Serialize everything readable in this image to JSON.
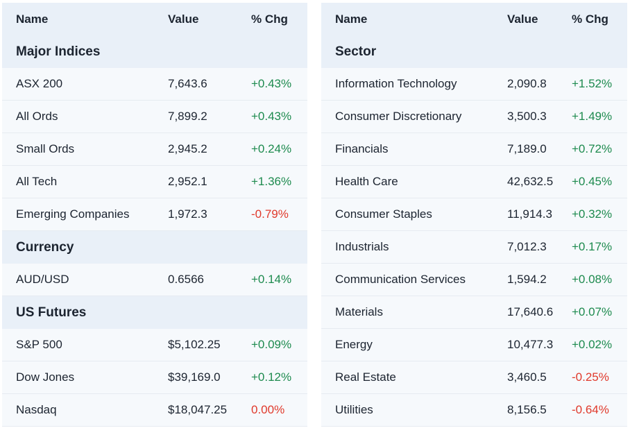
{
  "colors": {
    "positive": "#1d8a4e",
    "negative": "#e0392b",
    "header_bg": "#e9f0f8",
    "row_bg": "#f6f9fc"
  },
  "left": {
    "headers": {
      "name": "Name",
      "value": "Value",
      "chg": "% Chg"
    },
    "sections": [
      {
        "title": "Major Indices",
        "rows": [
          {
            "name": "ASX 200",
            "value": "7,643.6",
            "chg": "+0.43%",
            "dir": "pos"
          },
          {
            "name": "All Ords",
            "value": "7,899.2",
            "chg": "+0.43%",
            "dir": "pos"
          },
          {
            "name": "Small Ords",
            "value": "2,945.2",
            "chg": "+0.24%",
            "dir": "pos"
          },
          {
            "name": "All Tech",
            "value": "2,952.1",
            "chg": "+1.36%",
            "dir": "pos"
          },
          {
            "name": "Emerging Companies",
            "value": "1,972.3",
            "chg": "-0.79%",
            "dir": "neg"
          }
        ]
      },
      {
        "title": "Currency",
        "rows": [
          {
            "name": "AUD/USD",
            "value": "0.6566",
            "chg": "+0.14%",
            "dir": "pos"
          }
        ]
      },
      {
        "title": "US Futures",
        "rows": [
          {
            "name": "S&P 500",
            "value": "$5,102.25",
            "chg": "+0.09%",
            "dir": "pos"
          },
          {
            "name": "Dow Jones",
            "value": "$39,169.0",
            "chg": "+0.12%",
            "dir": "pos"
          },
          {
            "name": "Nasdaq",
            "value": "$18,047.25",
            "chg": "0.00%",
            "dir": "neu"
          }
        ]
      }
    ]
  },
  "right": {
    "headers": {
      "name": "Name",
      "value": "Value",
      "chg": "% Chg"
    },
    "sections": [
      {
        "title": "Sector",
        "rows": [
          {
            "name": "Information Technology",
            "value": "2,090.8",
            "chg": "+1.52%",
            "dir": "pos"
          },
          {
            "name": "Consumer Discretionary",
            "value": "3,500.3",
            "chg": "+1.49%",
            "dir": "pos"
          },
          {
            "name": "Financials",
            "value": "7,189.0",
            "chg": "+0.72%",
            "dir": "pos"
          },
          {
            "name": "Health Care",
            "value": "42,632.5",
            "chg": "+0.45%",
            "dir": "pos"
          },
          {
            "name": "Consumer Staples",
            "value": "11,914.3",
            "chg": "+0.32%",
            "dir": "pos"
          },
          {
            "name": "Industrials",
            "value": "7,012.3",
            "chg": "+0.17%",
            "dir": "pos"
          },
          {
            "name": "Communication Services",
            "value": "1,594.2",
            "chg": "+0.08%",
            "dir": "pos"
          },
          {
            "name": "Materials",
            "value": "17,640.6",
            "chg": "+0.07%",
            "dir": "pos"
          },
          {
            "name": "Energy",
            "value": "10,477.3",
            "chg": "+0.02%",
            "dir": "pos"
          },
          {
            "name": "Real Estate",
            "value": "3,460.5",
            "chg": "-0.25%",
            "dir": "neg"
          },
          {
            "name": "Utilities",
            "value": "8,156.5",
            "chg": "-0.64%",
            "dir": "neg"
          }
        ]
      }
    ]
  }
}
